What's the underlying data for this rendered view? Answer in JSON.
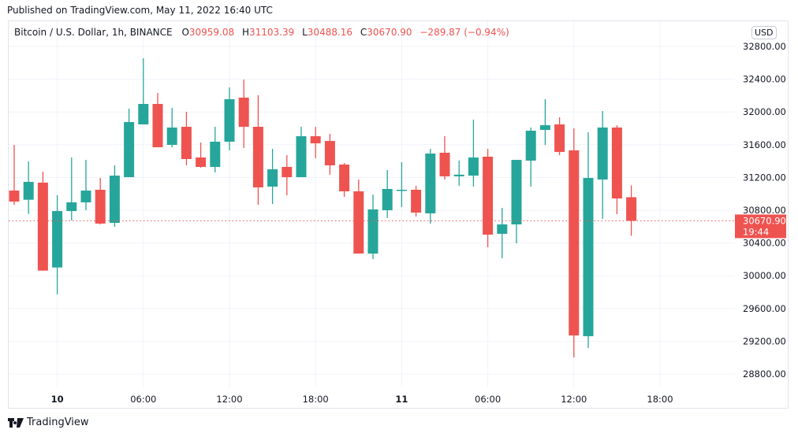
{
  "header": {
    "published": "Published on TradingView.com, May 11, 2022 16:40 UTC"
  },
  "legend": {
    "symbol": "Bitcoin / U.S. Dollar, 1h, BINANCE",
    "o_label": "O",
    "o": "30959.08",
    "h_label": "H",
    "h": "31103.39",
    "l_label": "L",
    "l": "30488.16",
    "c_label": "C",
    "c": "30670.90",
    "change": "−289.87 (−0.94%)"
  },
  "currency_button": "USD",
  "footer": {
    "brand": "TradingView"
  },
  "colors": {
    "up": "#26a69a",
    "down": "#ef5350",
    "grid": "#f0f3fa"
  },
  "chart_data": {
    "type": "candlestick",
    "title": "Bitcoin / U.S. Dollar, 1h, BINANCE",
    "interval": "1h",
    "ylim": [
      28800,
      32800
    ],
    "y_ticks": [
      "32800.00",
      "32400.00",
      "32000.00",
      "31600.00",
      "31200.00",
      "30800.00",
      "30400.00",
      "30000.00",
      "29600.00",
      "29200.00",
      "28800.00"
    ],
    "x_ticks": [
      {
        "label": "10",
        "index": 3,
        "bold": true
      },
      {
        "label": "06:00",
        "index": 9,
        "bold": false
      },
      {
        "label": "12:00",
        "index": 15,
        "bold": false
      },
      {
        "label": "18:00",
        "index": 21,
        "bold": false
      },
      {
        "label": "11",
        "index": 27,
        "bold": true
      },
      {
        "label": "06:00",
        "index": 33,
        "bold": false
      },
      {
        "label": "12:00",
        "index": 39,
        "bold": false
      },
      {
        "label": "18:00",
        "index": 45,
        "bold": false
      }
    ],
    "last_price": {
      "value": 30670.9,
      "label": "30670.90",
      "countdown": "19:44"
    },
    "candles": [
      [
        31040,
        31598,
        30867,
        30906
      ],
      [
        30928,
        31396,
        30755,
        31146
      ],
      [
        31137,
        31271,
        30060,
        30063
      ],
      [
        30101,
        30983,
        29774,
        30790
      ],
      [
        30790,
        31444,
        30675,
        30896
      ],
      [
        30896,
        31415,
        30800,
        31040
      ],
      [
        31050,
        31194,
        30627,
        30637
      ],
      [
        30646,
        31348,
        30598,
        31223
      ],
      [
        31204,
        32040,
        31204,
        31877
      ],
      [
        31848,
        32656,
        31848,
        32098
      ],
      [
        32098,
        32233,
        31569,
        31569
      ],
      [
        31598,
        32050,
        31569,
        31810
      ],
      [
        31819,
        32002,
        31348,
        31425
      ],
      [
        31444,
        31627,
        31319,
        31329
      ],
      [
        31329,
        31819,
        31262,
        31637
      ],
      [
        31637,
        32300,
        31531,
        32156
      ],
      [
        32175,
        32396,
        31560,
        31819
      ],
      [
        31819,
        32204,
        30867,
        31079
      ],
      [
        31089,
        31550,
        30877,
        31300
      ],
      [
        31329,
        31473,
        30983,
        31204
      ],
      [
        31204,
        31819,
        31204,
        31704
      ],
      [
        31704,
        31819,
        31435,
        31617
      ],
      [
        31646,
        31733,
        31233,
        31348
      ],
      [
        31358,
        31377,
        30964,
        31031
      ],
      [
        31031,
        31175,
        30271,
        30271
      ],
      [
        30271,
        30992,
        30204,
        30810
      ],
      [
        30800,
        31290,
        30704,
        31060
      ],
      [
        31040,
        31387,
        30839,
        31050
      ],
      [
        31050,
        31098,
        30723,
        30771
      ],
      [
        30762,
        31550,
        30637,
        31492
      ],
      [
        31502,
        31704,
        31175,
        31214
      ],
      [
        31214,
        31406,
        31098,
        31234
      ],
      [
        31223,
        31906,
        31089,
        31444
      ],
      [
        31454,
        31550,
        30348,
        30502
      ],
      [
        30512,
        30829,
        30214,
        30627
      ],
      [
        30627,
        31415,
        30396,
        31415
      ],
      [
        31406,
        31810,
        31089,
        31771
      ],
      [
        31781,
        32156,
        31598,
        31838
      ],
      [
        31848,
        31935,
        31473,
        31512
      ],
      [
        31531,
        31800,
        29002,
        29271
      ],
      [
        29262,
        31752,
        29117,
        31194
      ],
      [
        31175,
        32012,
        30694,
        31810
      ],
      [
        31810,
        31838,
        30752,
        30944
      ],
      [
        30959.08,
        31103.39,
        30488.16,
        30670.9
      ]
    ],
    "candle_fields": [
      "open",
      "high",
      "low",
      "close"
    ]
  }
}
